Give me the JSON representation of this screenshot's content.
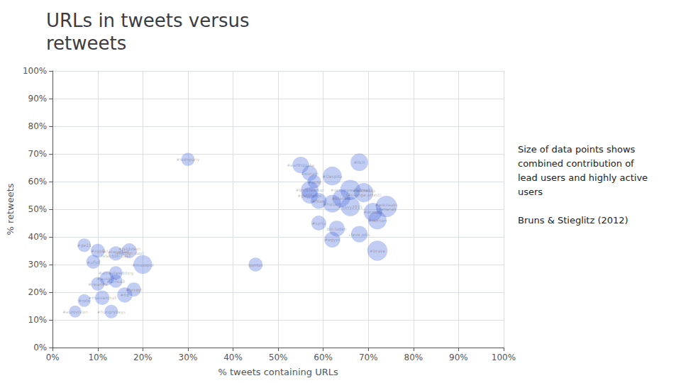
{
  "chart_data": {
    "type": "scatter",
    "title": "URLs in tweets versus\nretweets",
    "xlabel": "% tweets containing URLs",
    "ylabel": "% retweets",
    "annotation": "Size of data points shows\ncombined contribution of\nlead users and highly active\nusers\n\nBruns & Stieglitz (2012)",
    "xlim": [
      0,
      100
    ],
    "ylim": [
      0,
      100
    ],
    "xticks": [
      {
        "value": 0,
        "label": "0%"
      },
      {
        "value": 10,
        "label": "10%"
      },
      {
        "value": 20,
        "label": "20%"
      },
      {
        "value": 30,
        "label": "30%"
      },
      {
        "value": 40,
        "label": "40%"
      },
      {
        "value": 50,
        "label": "50%"
      },
      {
        "value": 60,
        "label": "60%"
      },
      {
        "value": 70,
        "label": "70%"
      },
      {
        "value": 80,
        "label": "80%"
      },
      {
        "value": 90,
        "label": "90%"
      },
      {
        "value": 100,
        "label": "100%"
      }
    ],
    "yticks": [
      {
        "value": 0,
        "label": "0%"
      },
      {
        "value": 10,
        "label": "10%"
      },
      {
        "value": 20,
        "label": "20%"
      },
      {
        "value": 30,
        "label": "30%"
      },
      {
        "value": 40,
        "label": "40%"
      },
      {
        "value": 50,
        "label": "50%"
      },
      {
        "value": 60,
        "label": "60%"
      },
      {
        "value": 70,
        "label": "70%"
      },
      {
        "value": 80,
        "label": "80%"
      },
      {
        "value": 90,
        "label": "90%"
      },
      {
        "value": 100,
        "label": "100%"
      }
    ],
    "grid": true,
    "x": [
      30,
      55,
      68,
      57,
      58,
      57,
      62,
      57,
      59,
      64,
      66,
      69,
      62,
      66,
      74,
      72,
      71,
      59,
      63,
      68,
      62,
      72,
      45,
      20,
      9,
      7,
      10,
      14,
      17,
      14,
      12,
      14,
      10,
      18,
      16,
      11,
      7,
      5,
      13
    ],
    "values": [
      68,
      66,
      67,
      63,
      60,
      57,
      62,
      55,
      53,
      54,
      57,
      56,
      52,
      51,
      51,
      46,
      49,
      45,
      43,
      41,
      39,
      35,
      30,
      30,
      31,
      37,
      35,
      34,
      35,
      27,
      25,
      24,
      23,
      21,
      19,
      18,
      17,
      13,
      13
    ],
    "sizes": [
      180,
      280,
      320,
      240,
      190,
      320,
      370,
      280,
      260,
      320,
      420,
      380,
      330,
      390,
      470,
      350,
      350,
      230,
      260,
      280,
      260,
      420,
      200,
      360,
      200,
      185,
      200,
      210,
      230,
      185,
      205,
      185,
      185,
      205,
      240,
      215,
      165,
      150,
      185
    ],
    "labels": [
      "#kompany",
      "#earthquake",
      "#itch",
      "#osnam",
      "#acro",
      "#bictcleanup",
      "#Oespita",
      "#getlifongs",
      "#filani",
      "#klariets",
      "#occupywallstreet",
      "#wikileaks\n(Assange arrest)",
      "#husam",
      "#navy2011",
      "#wikileaks\n(general)",
      "#nornan",
      "#occupy",
      "#syria",
      "bin laden",
      "steve jobs",
      "#egypt",
      "#brave",
      "qantas",
      "#maxopol",
      "#aflof",
      "#ge11",
      "#xyp8",
      "#facesofted\n(election day)",
      "#feldstein\n(election day)",
      "#arrivalwedding",
      "#aussars",
      "#africa3",
      "#rwanda",
      "#bridgt",
      "#fdl",
      "#masserchat",
      "#roto",
      "#eurovision",
      "#hungrybeys"
    ]
  }
}
